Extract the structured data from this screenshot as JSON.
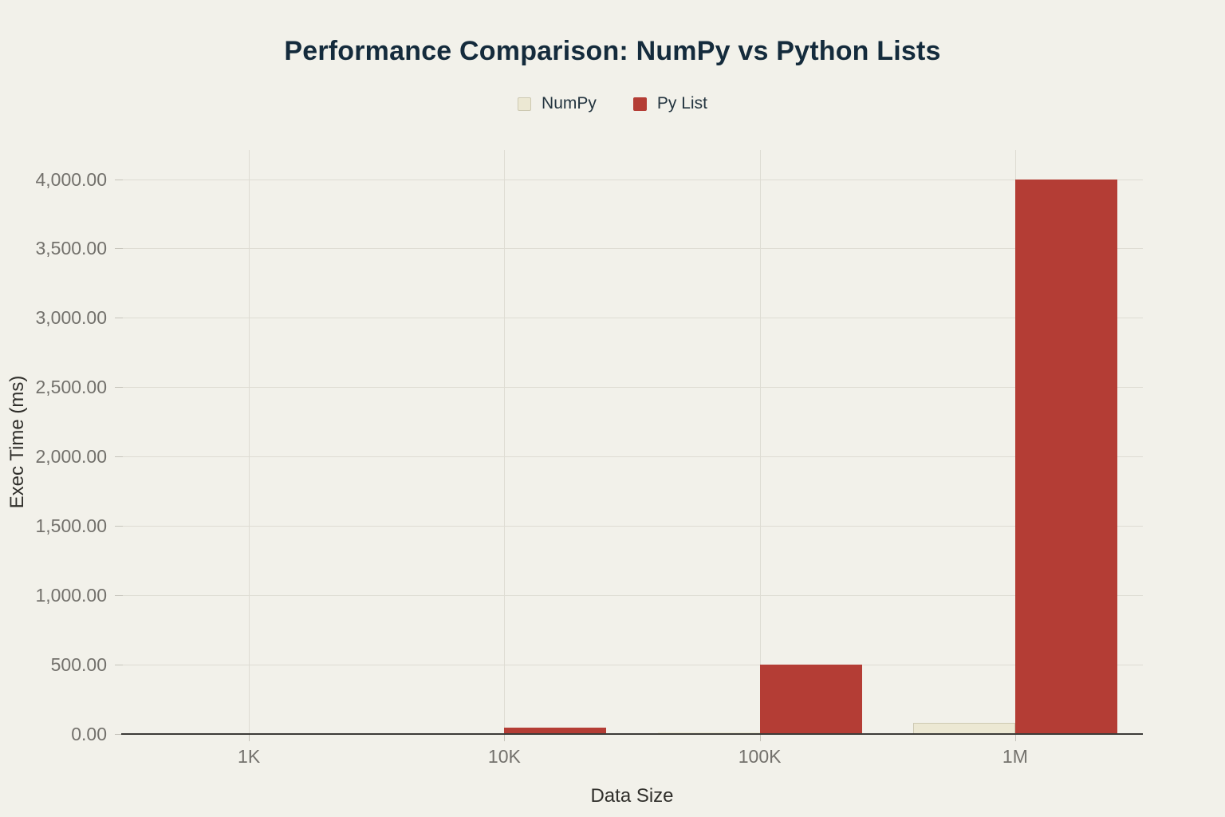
{
  "colors": {
    "background": "#f2f1ea",
    "numpy_fill": "#ece8d3",
    "numpy_border": "#cdc9b2",
    "pylist_fill": "#b43d35",
    "title_text": "#142b3c",
    "legend_text": "#243540",
    "tick_text": "#73716c",
    "axis_title_text": "#302f2b",
    "gridline": "#dedcd3",
    "axis_line": "#3c3b38"
  },
  "chart_data": {
    "type": "bar",
    "title": "Performance Comparison: NumPy vs Python Lists",
    "xlabel": "Data Size",
    "ylabel": "Exec Time (ms)",
    "categories": [
      "1K",
      "10K",
      "100K",
      "1M"
    ],
    "series": [
      {
        "name": "NumPy",
        "color": "#ece8d3",
        "border": "#cdc9b2",
        "values": [
          0.5,
          2,
          10,
          80
        ]
      },
      {
        "name": "Py List",
        "color": "#b43d35",
        "border": "#b43d35",
        "values": [
          5,
          45,
          500,
          4000
        ]
      }
    ],
    "ylim": [
      0,
      4210
    ],
    "yticks": [
      0,
      500,
      1000,
      1500,
      2000,
      2500,
      3000,
      3500,
      4000
    ],
    "ytick_labels": [
      "0.00",
      "500.00",
      "1,000.00",
      "1,500.00",
      "2,000.00",
      "2,500.00",
      "3,000.00",
      "3,500.00",
      "4,000.00"
    ],
    "grid": true,
    "legend_position": "top"
  }
}
